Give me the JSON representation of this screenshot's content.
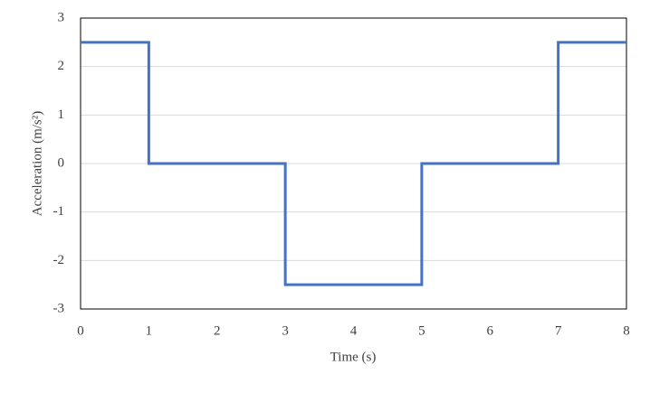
{
  "chart_data": {
    "type": "line",
    "x_label": "Time (s)",
    "y_label": "Acceleration (m/s²)",
    "x": [
      0,
      1,
      1,
      3,
      3,
      5,
      5,
      7,
      7,
      8
    ],
    "series": [
      {
        "color": "#4472c4",
        "values": [
          2.5,
          2.5,
          0,
          0,
          -2.5,
          -2.5,
          0,
          0,
          2.5,
          2.5
        ]
      }
    ],
    "xlim": [
      0,
      8
    ],
    "xticks": [
      0,
      1,
      2,
      3,
      4,
      5,
      6,
      7,
      8
    ],
    "ylim": [
      -3,
      3
    ],
    "yticks": [
      -3,
      -2,
      -1,
      0,
      1,
      2,
      3
    ],
    "grid": true
  }
}
